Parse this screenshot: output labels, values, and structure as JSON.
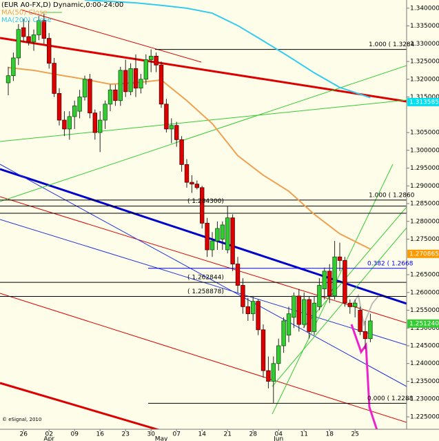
{
  "chart_data": {
    "type": "candlestick",
    "title": "(EUR A0-FX,D) Dynamic,0:00-24:00",
    "categories": [
      null,
      null,
      null,
      "26",
      null,
      null,
      null,
      null,
      "02",
      null,
      null,
      null,
      null,
      "09",
      null,
      null,
      null,
      null,
      "16",
      null,
      null,
      null,
      null,
      "23",
      null,
      null,
      null,
      null,
      "30",
      null,
      null,
      null,
      null,
      "07",
      null,
      null,
      null,
      null,
      "14",
      null,
      null,
      null,
      null,
      "21",
      null,
      null,
      null,
      null,
      "28",
      null,
      null,
      null,
      null,
      "04",
      null,
      null,
      null,
      null,
      "11",
      null,
      null,
      null,
      null,
      "18",
      null,
      null,
      null,
      null,
      "25",
      null,
      null,
      null
    ],
    "months": [
      "Apr",
      "May",
      "Jun"
    ],
    "open": [
      1.319,
      1.321,
      1.326,
      1.3345,
      1.332,
      1.3305,
      1.3325,
      1.3365,
      1.3315,
      1.3245,
      1.316,
      1.3085,
      1.306,
      1.3095,
      1.311,
      1.315,
      1.32,
      1.3105,
      1.305,
      1.3085,
      1.313,
      1.317,
      1.314,
      1.3225,
      1.3165,
      1.323,
      1.3175,
      1.32,
      1.3255,
      1.3265,
      1.324,
      1.313,
      1.306,
      1.307,
      1.303,
      1.296,
      1.291,
      1.2905,
      1.2895,
      1.2795,
      1.272,
      1.2745,
      1.275,
      1.272,
      1.281,
      1.268,
      1.262,
      1.256,
      1.254,
      1.2575,
      1.2495,
      1.238,
      1.235,
      1.24,
      1.245,
      1.248,
      1.253,
      1.259,
      1.251,
      1.258,
      1.249,
      1.256,
      1.261,
      1.266,
      1.259,
      1.27,
      1.269,
      1.257,
      1.256,
      1.255,
      1.249,
      1.247
    ],
    "high": [
      1.3235,
      1.3275,
      1.3355,
      1.337,
      1.3365,
      1.334,
      1.3378,
      1.3385,
      1.333,
      1.326,
      1.3175,
      1.311,
      1.311,
      1.314,
      1.317,
      1.321,
      1.3215,
      1.3115,
      1.311,
      1.314,
      1.3185,
      1.3185,
      1.3235,
      1.3255,
      1.3245,
      1.327,
      1.3215,
      1.327,
      1.3284,
      1.3275,
      1.325,
      1.3145,
      1.309,
      1.308,
      1.304,
      1.2975,
      1.293,
      1.2915,
      1.29,
      1.281,
      1.277,
      1.28,
      1.28,
      1.2843,
      1.282,
      1.27,
      1.264,
      1.2585,
      1.259,
      1.258,
      1.251,
      1.242,
      1.242,
      1.247,
      1.253,
      1.256,
      1.26,
      1.261,
      1.26,
      1.259,
      1.259,
      1.264,
      1.267,
      1.268,
      1.2745,
      1.274,
      1.27,
      1.258,
      1.258,
      1.256,
      1.252,
      1.254
    ],
    "low": [
      1.3155,
      1.3195,
      1.324,
      1.3305,
      1.3295,
      1.328,
      1.331,
      1.33,
      1.323,
      1.315,
      1.307,
      1.304,
      1.303,
      1.306,
      1.309,
      1.314,
      1.309,
      1.303,
      1.2995,
      1.306,
      1.311,
      1.3125,
      1.3125,
      1.315,
      1.3155,
      1.315,
      1.316,
      1.3185,
      1.322,
      1.322,
      1.312,
      1.305,
      1.302,
      1.301,
      1.294,
      1.2895,
      1.288,
      1.289,
      1.278,
      1.27,
      1.27,
      1.272,
      1.272,
      1.271,
      1.266,
      1.26,
      1.254,
      1.252,
      1.252,
      1.248,
      1.236,
      1.233,
      1.2288,
      1.238,
      1.243,
      1.246,
      1.25,
      1.249,
      1.25,
      1.247,
      1.248,
      1.255,
      1.258,
      1.257,
      1.258,
      1.266,
      1.256,
      1.254,
      1.253,
      1.248,
      1.244,
      1.246
    ],
    "close": [
      1.321,
      1.326,
      1.334,
      1.332,
      1.3305,
      1.3325,
      1.3365,
      1.3315,
      1.3245,
      1.316,
      1.3085,
      1.306,
      1.3095,
      1.3125,
      1.315,
      1.32,
      1.3105,
      1.305,
      1.3085,
      1.313,
      1.317,
      1.314,
      1.3225,
      1.3165,
      1.323,
      1.3175,
      1.32,
      1.3255,
      1.3265,
      1.324,
      1.313,
      1.306,
      1.307,
      1.303,
      1.296,
      1.291,
      1.2905,
      1.2895,
      1.2795,
      1.272,
      1.2745,
      1.278,
      1.279,
      1.281,
      1.268,
      1.262,
      1.256,
      1.254,
      1.2575,
      1.2495,
      1.238,
      1.235,
      1.24,
      1.245,
      1.252,
      1.254,
      1.259,
      1.251,
      1.258,
      1.249,
      1.257,
      1.262,
      1.266,
      1.259,
      1.27,
      1.269,
      1.257,
      1.256,
      1.257,
      1.249,
      1.247,
      1.252
    ],
    "up_color": "#33cc33",
    "down_color": "#dd0000",
    "ylim": [
      1.2215,
      1.3423
    ],
    "yticks": [
      {
        "value": 1.34,
        "label": "1.340000"
      },
      {
        "value": 1.335,
        "label": "1.335000"
      },
      {
        "value": 1.33,
        "label": "1.330000"
      },
      {
        "value": 1.325,
        "label": "1.325000"
      },
      {
        "value": 1.32,
        "label": "1.320000"
      },
      {
        "value": 1.315,
        "label": "1.315000"
      },
      {
        "value": 1.305,
        "label": "1.305000"
      },
      {
        "value": 1.3,
        "label": "1.300000"
      },
      {
        "value": 1.295,
        "label": "1.295000"
      },
      {
        "value": 1.29,
        "label": "1.290000"
      },
      {
        "value": 1.285,
        "label": "1.285000"
      },
      {
        "value": 1.28,
        "label": "1.280000"
      },
      {
        "value": 1.275,
        "label": "1.275000"
      },
      {
        "value": 1.265,
        "label": "1.265000"
      },
      {
        "value": 1.26,
        "label": "1.260000"
      },
      {
        "value": 1.255,
        "label": "1.255000"
      },
      {
        "value": 1.25,
        "label": "1.250000"
      },
      {
        "value": 1.245,
        "label": "1.245000"
      },
      {
        "value": 1.24,
        "label": "1.240000"
      },
      {
        "value": 1.235,
        "label": "1.235000"
      },
      {
        "value": 1.23,
        "label": "1.230000"
      },
      {
        "value": 1.225,
        "label": "1.225000"
      }
    ],
    "overlays": [
      {
        "name": "MA(50) Close",
        "color": "#f0a050",
        "x": [
          0,
          5,
          10,
          15,
          20,
          25,
          30,
          35,
          40,
          45,
          50,
          55,
          60,
          65,
          71
        ],
        "values": [
          1.3233,
          1.3225,
          1.3212,
          1.32,
          1.3186,
          1.319,
          1.3198,
          1.314,
          1.3075,
          1.2985,
          1.293,
          1.2885,
          1.282,
          1.2765,
          1.2722
        ]
      },
      {
        "name": "MA(200) Close",
        "color": "#33ccee",
        "x": [
          15,
          20,
          25,
          30,
          35,
          40,
          45,
          50,
          55,
          60,
          65,
          71
        ],
        "values": [
          1.3423,
          1.3419,
          1.3415,
          1.3408,
          1.34,
          1.3386,
          1.3351,
          1.3308,
          1.3264,
          1.3218,
          1.3177,
          1.3148
        ]
      }
    ],
    "annotations": [
      {
        "label": "1.000 ( 1.3284",
        "value": 1.3284,
        "color": "#000000"
      },
      {
        "label": "1.000 ( 1.2860",
        "value": 1.286,
        "color": "#000000"
      },
      {
        "label": "( 1.284300)",
        "value": 1.2843,
        "color": "#000000"
      },
      {
        "label": "0.382 ( 1.2668",
        "value": 1.2668,
        "color": "#0000ff"
      },
      {
        "label": "( 1.262844)",
        "value": 1.262844,
        "color": "#000000"
      },
      {
        "label": "( 1.258878)",
        "value": 1.258878,
        "color": "#000000"
      },
      {
        "label": "0.000 ( 1.2288",
        "value": 1.2288,
        "color": "#000000"
      }
    ],
    "price_markers": [
      {
        "value": 1.313585,
        "color": "#00e0f0"
      },
      {
        "value": 1.270865,
        "color": "#ff9900"
      },
      {
        "value": 1.25124,
        "label": "1.251240",
        "color": "#33cc33"
      }
    ],
    "footer": "© eSignal, 2010"
  }
}
